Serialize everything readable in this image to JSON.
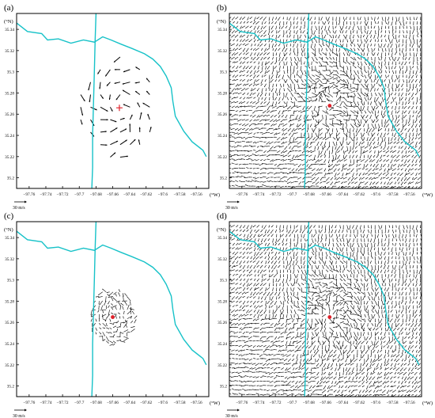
{
  "figure": {
    "unit_x": "(°W)",
    "unit_y": "(°N)",
    "scale_label": "30 m/s",
    "colors": {
      "boundary": "#17c2c8",
      "center_marker": "#e0202a",
      "vector": "#000000"
    }
  },
  "chart_data": [
    {
      "panel": "(a)",
      "type": "quiver",
      "x_ticks": [
        "−97.76",
        "−97.74",
        "−97.72",
        "−97.7",
        "−97.68",
        "−97.66",
        "−97.64",
        "−97.62",
        "−97.6",
        "−97.58",
        "−97.56"
      ],
      "y_ticks": [
        "35.34",
        "35.32",
        "35.3",
        "35.28",
        "35.26",
        "35.24",
        "35.22",
        "35.2"
      ],
      "xlim": [
        -97.775,
        -97.545
      ],
      "ylim": [
        35.19,
        35.355
      ],
      "field": "sparse-ring",
      "center": [
        -97.652,
        35.266
      ],
      "field_radius": 0.048,
      "center_marker": "cross",
      "grid_step": 0.0118
    },
    {
      "panel": "(b)",
      "type": "quiver",
      "x_ticks": [
        "−97.76",
        "−97.74",
        "−97.72",
        "−97.7",
        "−97.68",
        "−97.66",
        "−97.64",
        "−97.62",
        "−97.6",
        "−97.58",
        "−97.56"
      ],
      "y_ticks": [
        "35.34",
        "35.32",
        "35.3",
        "35.28",
        "35.26",
        "35.24",
        "35.22",
        "35.2"
      ],
      "xlim": [
        -97.775,
        -97.545
      ],
      "ylim": [
        35.19,
        35.355
      ],
      "field": "dense-domain",
      "center": [
        -97.655,
        35.268
      ],
      "center_marker": "dot",
      "grid_step": 0.0042
    },
    {
      "panel": "(c)",
      "type": "quiver",
      "x_ticks": [
        "−97.76",
        "−97.74",
        "−97.72",
        "−97.7",
        "−97.68",
        "−97.66",
        "−97.64",
        "−97.62",
        "−97.6",
        "−97.58",
        "−97.56"
      ],
      "y_ticks": [
        "35.34",
        "35.32",
        "35.3",
        "35.28",
        "35.26",
        "35.24",
        "35.22",
        "35.2"
      ],
      "xlim": [
        -97.775,
        -97.545
      ],
      "ylim": [
        35.19,
        35.355
      ],
      "field": "dense-disk",
      "center": [
        -97.66,
        35.265
      ],
      "field_radius": 0.027,
      "center_marker": "dot",
      "grid_step": 0.0042
    },
    {
      "panel": "(d)",
      "type": "quiver",
      "x_ticks": [
        "−97.76",
        "−97.74",
        "−97.72",
        "−97.7",
        "−97.68",
        "−97.66",
        "−97.64",
        "−97.62",
        "−97.6",
        "−97.58",
        "−97.56"
      ],
      "y_ticks": [
        "35.34",
        "35.32",
        "35.3",
        "35.28",
        "35.26",
        "35.24",
        "35.22",
        "35.2"
      ],
      "xlim": [
        -97.775,
        -97.545
      ],
      "ylim": [
        35.19,
        35.355
      ],
      "field": "dense-domain",
      "center": [
        -97.655,
        35.265
      ],
      "center_marker": "dot",
      "grid_step": 0.0042
    }
  ]
}
